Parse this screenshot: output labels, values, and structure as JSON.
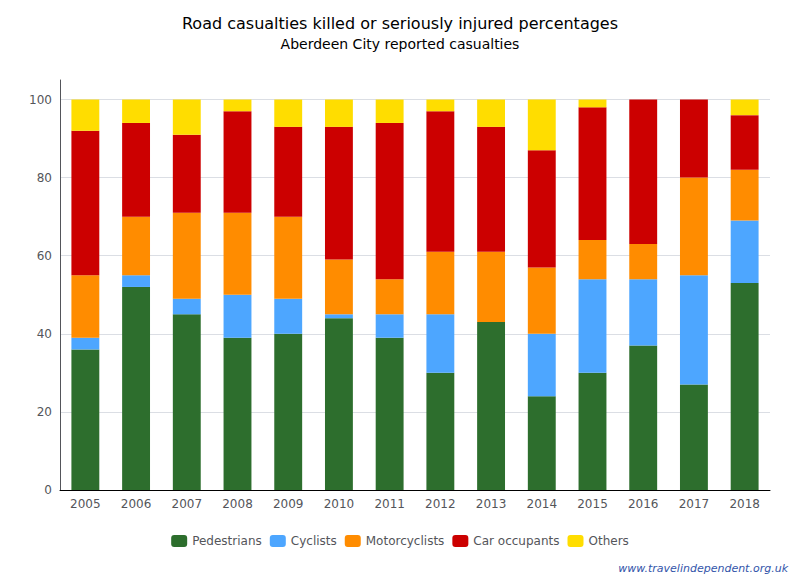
{
  "chart_data": {
    "type": "bar",
    "title": "Road casualties killed or seriously injured percentages",
    "subtitle": "Aberdeen City reported casualties",
    "categories": [
      "2005",
      "2006",
      "2007",
      "2008",
      "2009",
      "2010",
      "2011",
      "2012",
      "2013",
      "2014",
      "2015",
      "2016",
      "2017",
      "2018"
    ],
    "series": [
      {
        "name": "Pedestrians",
        "color": "#2d6e2d",
        "values": [
          36,
          52,
          45,
          39,
          40,
          44,
          39,
          30,
          43,
          24,
          30,
          37,
          27,
          53
        ]
      },
      {
        "name": "Cyclists",
        "color": "#4da6ff",
        "values": [
          3,
          3,
          4,
          11,
          9,
          1,
          6,
          15,
          0,
          16,
          24,
          17,
          28,
          16
        ]
      },
      {
        "name": "Motorcyclists",
        "color": "#ff8c00",
        "values": [
          16,
          15,
          22,
          21,
          21,
          14,
          9,
          16,
          18,
          17,
          10,
          9,
          25,
          13
        ]
      },
      {
        "name": "Car occupants",
        "color": "#cc0000",
        "values": [
          37,
          24,
          20,
          26,
          23,
          34,
          40,
          36,
          32,
          30,
          34,
          37,
          20,
          14
        ]
      },
      {
        "name": "Others",
        "color": "#ffdd00",
        "values": [
          8,
          6,
          9,
          3,
          7,
          7,
          6,
          3,
          7,
          13,
          2,
          0,
          0,
          4
        ]
      }
    ],
    "stacked": true,
    "ylim": [
      0,
      105
    ],
    "yticks": [
      0,
      20,
      40,
      60,
      80,
      100
    ],
    "grid": true,
    "legend": "bottom",
    "annotations": [
      "www.travelindependent.org.uk"
    ]
  }
}
